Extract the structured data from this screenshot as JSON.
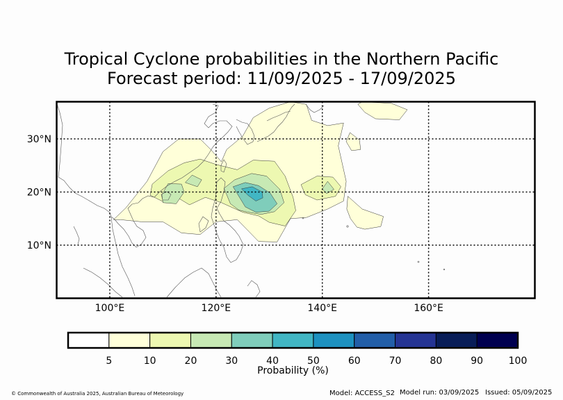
{
  "title_line1": "Tropical Cyclone probabilities in the Northern Pacific",
  "title_line2": "Forecast period: 11/09/2025 - 17/09/2025",
  "chart_data": {
    "type": "heatmap",
    "title": "Tropical Cyclone probabilities in the Northern Pacific",
    "subtitle": "Forecast period: 11/09/2025 - 17/09/2025",
    "xlim": [
      90,
      180
    ],
    "ylim": [
      0,
      37
    ],
    "x_ticks": [
      100,
      120,
      140,
      160
    ],
    "x_tick_labels": [
      "100°E",
      "120°E",
      "140°E",
      "160°E"
    ],
    "y_ticks": [
      10,
      20,
      30
    ],
    "y_tick_labels": [
      "10°N",
      "20°N",
      "30°N"
    ],
    "grid": "dotted",
    "colorbar": {
      "label": "Probability (%)",
      "ticks": [
        "5",
        "10",
        "20",
        "30",
        "40",
        "50",
        "60",
        "70",
        "80",
        "90",
        "100"
      ],
      "colors": [
        "#ffffff",
        "#ffffd9",
        "#edf8b1",
        "#c7e9b4",
        "#7fcdbb",
        "#41b6c4",
        "#1d91c0",
        "#225ea8",
        "#253494",
        "#081d58",
        "#000050"
      ]
    },
    "regions": [
      {
        "level": "5-10%",
        "color": "#ffffd9",
        "points": [
          [
            100.7,
            14.8
          ],
          [
            103,
            17
          ],
          [
            107,
            22
          ],
          [
            110,
            27.6
          ],
          [
            113,
            30
          ],
          [
            117,
            30
          ],
          [
            119,
            28
          ],
          [
            121,
            25.7
          ],
          [
            122,
            28
          ],
          [
            125,
            30.5
          ],
          [
            127,
            34
          ],
          [
            130,
            35.8
          ],
          [
            134,
            37
          ],
          [
            137,
            36.5
          ],
          [
            138,
            33.5
          ],
          [
            141,
            32.5
          ],
          [
            144,
            33
          ],
          [
            143,
            28.7
          ],
          [
            144.5,
            22
          ],
          [
            144,
            18.3
          ],
          [
            141,
            16.8
          ],
          [
            137,
            15.2
          ],
          [
            134,
            15
          ],
          [
            131.5,
            10.6
          ],
          [
            128,
            10.7
          ],
          [
            124,
            14.8
          ],
          [
            120,
            14.4
          ],
          [
            117,
            12
          ],
          [
            113.5,
            12.3
          ],
          [
            110,
            14.4
          ],
          [
            106,
            14.4
          ],
          [
            102,
            14.8
          ]
        ]
      },
      {
        "level": "5-10%",
        "color": "#ffffd9",
        "points": [
          [
            147.5,
            37
          ],
          [
            153,
            36.7
          ],
          [
            156,
            35.5
          ],
          [
            154.5,
            33.6
          ],
          [
            150,
            33.8
          ],
          [
            148,
            35
          ],
          [
            146.7,
            36.5
          ]
        ]
      },
      {
        "level": "5-10%",
        "color": "#ffffd9",
        "points": [
          [
            145.2,
            31.2
          ],
          [
            147,
            29.8
          ],
          [
            147.2,
            28
          ],
          [
            145.5,
            27.8
          ],
          [
            144.5,
            29.5
          ]
        ]
      },
      {
        "level": "5-10%",
        "color": "#ffffd9",
        "points": [
          [
            144.8,
            19.2
          ],
          [
            147.5,
            16.8
          ],
          [
            151.5,
            15.4
          ],
          [
            151,
            13.5
          ],
          [
            148,
            13
          ],
          [
            146.5,
            13.4
          ],
          [
            145.3,
            15
          ],
          [
            144.6,
            16.8
          ]
        ]
      },
      {
        "level": "10-20%",
        "color": "#edf8b1",
        "points": [
          [
            108,
            21.5
          ],
          [
            111,
            24
          ],
          [
            114,
            25.5
          ],
          [
            117,
            26.2
          ],
          [
            120,
            25.2
          ],
          [
            124,
            24.2
          ],
          [
            127,
            26
          ],
          [
            131,
            25.8
          ],
          [
            133,
            23
          ],
          [
            134.5,
            19
          ],
          [
            135,
            16.5
          ],
          [
            133,
            13.6
          ],
          [
            130,
            14.3
          ],
          [
            128,
            15.5
          ],
          [
            125,
            16.2
          ],
          [
            121,
            18
          ],
          [
            118,
            19
          ],
          [
            115,
            17.6
          ],
          [
            113,
            18.8
          ],
          [
            110,
            18.2
          ],
          [
            107.6,
            19.4
          ]
        ]
      },
      {
        "level": "10-20%",
        "color": "#edf8b1",
        "points": [
          [
            136,
            21.4
          ],
          [
            139,
            23
          ],
          [
            142,
            22.8
          ],
          [
            143.5,
            21
          ],
          [
            142.5,
            19.2
          ],
          [
            139,
            18.5
          ],
          [
            136.8,
            19.5
          ]
        ]
      },
      {
        "level": "20-30%",
        "color": "#c7e9b4",
        "points": [
          [
            109.8,
            19.5
          ],
          [
            111,
            21.6
          ],
          [
            113.5,
            21.5
          ],
          [
            114,
            20
          ],
          [
            112.5,
            17.8
          ],
          [
            110,
            18
          ]
        ]
      },
      {
        "level": "20-30%",
        "color": "#c7e9b4",
        "points": [
          [
            121.5,
            20.7
          ],
          [
            123.5,
            22.3
          ],
          [
            126.7,
            23.5
          ],
          [
            129.5,
            23
          ],
          [
            132,
            20.5
          ],
          [
            132.8,
            18
          ],
          [
            131,
            16.3
          ],
          [
            128.5,
            15.8
          ],
          [
            126,
            16.2
          ],
          [
            124.3,
            16.6
          ],
          [
            122.7,
            17.8
          ]
        ]
      },
      {
        "level": "20-30%",
        "color": "#c7e9b4",
        "points": [
          [
            114.2,
            21.8
          ],
          [
            115.5,
            23.2
          ],
          [
            117.3,
            22.3
          ],
          [
            116.5,
            21
          ]
        ]
      },
      {
        "level": "20-30%",
        "color": "#c7e9b4",
        "points": [
          [
            140,
            20.6
          ],
          [
            141,
            22
          ],
          [
            142.2,
            20.5
          ],
          [
            140.8,
            19.7
          ]
        ]
      },
      {
        "level": "30-40%",
        "color": "#7fcdbb",
        "points": [
          [
            123.2,
            21
          ],
          [
            125.5,
            21.8
          ],
          [
            128,
            21.2
          ],
          [
            130.2,
            19.8
          ],
          [
            131.5,
            17.8
          ],
          [
            130,
            16.4
          ],
          [
            127.5,
            16.2
          ],
          [
            125.5,
            17.2
          ]
        ]
      },
      {
        "level": "40-50%",
        "color": "#41b6c4",
        "points": [
          [
            124.8,
            20.6
          ],
          [
            126.8,
            21
          ],
          [
            128.7,
            20
          ],
          [
            128.8,
            18.9
          ],
          [
            127.5,
            18.3
          ],
          [
            126,
            19.4
          ]
        ]
      }
    ]
  },
  "footer": {
    "copyright": "© Commonwealth of Australia 2025, Australian Bureau of Meteorology",
    "model": "Model: ACCESS_S2",
    "model_run": "Model run: 03/09/2025",
    "issued": "Issued: 05/09/2025"
  }
}
